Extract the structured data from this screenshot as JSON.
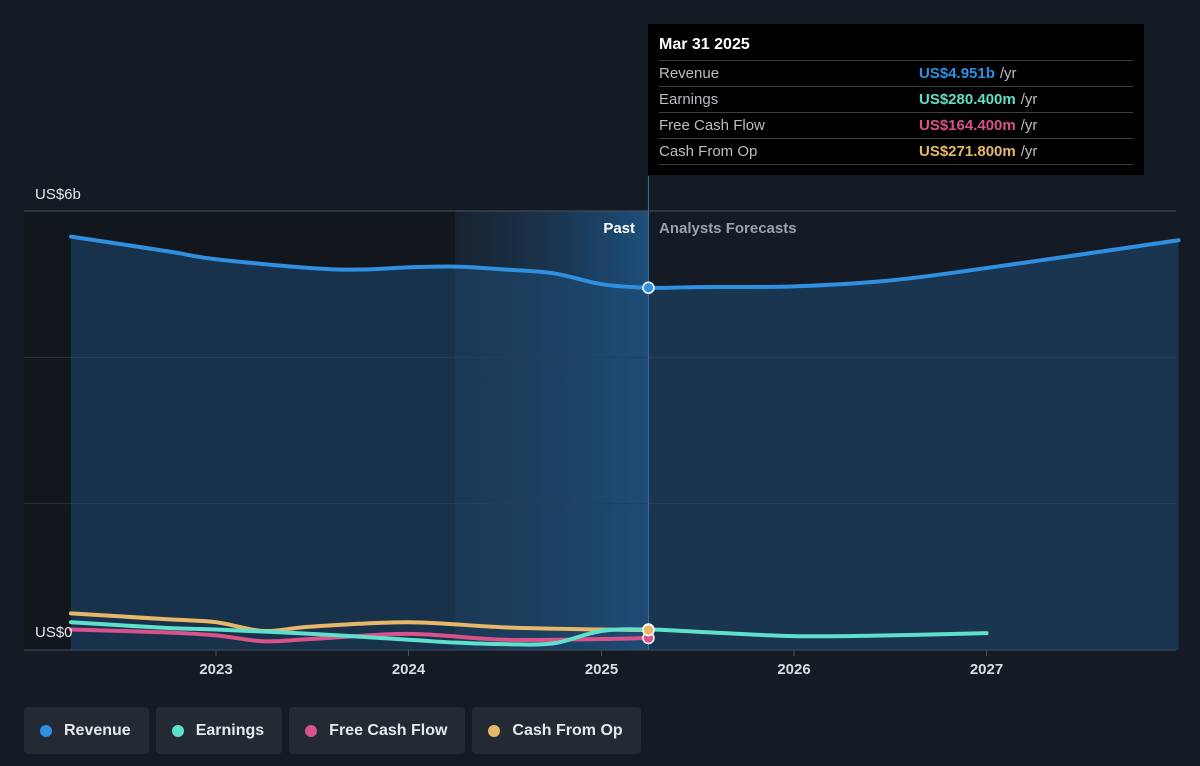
{
  "chart_data": {
    "type": "line",
    "x_axis": {
      "ticks": [
        "2023",
        "2024",
        "2025",
        "2026",
        "2027"
      ]
    },
    "y_axis": {
      "top_label": "US$6b",
      "bottom_label": "US$0",
      "ylim": [
        0,
        6
      ]
    },
    "regions": {
      "past_label": "Past",
      "forecast_label": "Analysts Forecasts"
    },
    "cursor_date": "2025-03-31",
    "series": [
      {
        "name": "Revenue",
        "color": "#2f8fe0",
        "points": [
          [
            "2022-04-01",
            5.65
          ],
          [
            "2022-10-01",
            5.45
          ],
          [
            "2023-01-01",
            5.34
          ],
          [
            "2023-07-01",
            5.22
          ],
          [
            "2023-10-01",
            5.2
          ],
          [
            "2024-01-01",
            5.23
          ],
          [
            "2024-04-01",
            5.24
          ],
          [
            "2024-07-01",
            5.2
          ],
          [
            "2024-10-01",
            5.15
          ],
          [
            "2025-01-01",
            5.0
          ],
          [
            "2025-03-31",
            4.951
          ],
          [
            "2025-07-01",
            4.96
          ],
          [
            "2026-01-01",
            4.97
          ],
          [
            "2026-07-01",
            5.05
          ],
          [
            "2027-01-01",
            5.22
          ],
          [
            "2027-12-31",
            5.6
          ]
        ]
      },
      {
        "name": "Earnings",
        "color": "#5fe0cc",
        "points": [
          [
            "2022-04-01",
            0.38
          ],
          [
            "2022-10-01",
            0.3
          ],
          [
            "2023-01-01",
            0.28
          ],
          [
            "2023-07-01",
            0.22
          ],
          [
            "2024-01-01",
            0.14
          ],
          [
            "2024-04-01",
            0.1
          ],
          [
            "2024-07-01",
            0.08
          ],
          [
            "2024-10-01",
            0.09
          ],
          [
            "2025-01-01",
            0.26
          ],
          [
            "2025-03-31",
            0.2804
          ],
          [
            "2025-07-01",
            0.25
          ],
          [
            "2026-01-01",
            0.19
          ],
          [
            "2026-07-01",
            0.2
          ],
          [
            "2027-01-01",
            0.23
          ]
        ]
      },
      {
        "name": "Free Cash Flow",
        "color": "#d9528a",
        "points": [
          [
            "2022-04-01",
            0.28
          ],
          [
            "2022-10-01",
            0.24
          ],
          [
            "2023-01-01",
            0.2
          ],
          [
            "2023-04-01",
            0.12
          ],
          [
            "2023-07-01",
            0.15
          ],
          [
            "2024-01-01",
            0.22
          ],
          [
            "2024-07-01",
            0.14
          ],
          [
            "2025-01-01",
            0.15
          ],
          [
            "2025-03-31",
            0.1644
          ]
        ]
      },
      {
        "name": "Cash From Op",
        "color": "#e8b86a",
        "points": [
          [
            "2022-04-01",
            0.5
          ],
          [
            "2022-10-01",
            0.42
          ],
          [
            "2023-01-01",
            0.38
          ],
          [
            "2023-04-01",
            0.26
          ],
          [
            "2023-07-01",
            0.32
          ],
          [
            "2024-01-01",
            0.38
          ],
          [
            "2024-07-01",
            0.31
          ],
          [
            "2025-01-01",
            0.28
          ],
          [
            "2025-03-31",
            0.2718
          ]
        ]
      }
    ]
  },
  "tooltip": {
    "date": "Mar 31 2025",
    "rows": [
      {
        "name": "Revenue",
        "value": "US$4.951b",
        "unit": "/yr",
        "color": "#2f8fe0"
      },
      {
        "name": "Earnings",
        "value": "US$280.400m",
        "unit": "/yr",
        "color": "#5fe0cc"
      },
      {
        "name": "Free Cash Flow",
        "value": "US$164.400m",
        "unit": "/yr",
        "color": "#d9528a"
      },
      {
        "name": "Cash From Op",
        "value": "US$271.800m",
        "unit": "/yr",
        "color": "#e8b86a"
      }
    ]
  },
  "legend": [
    {
      "label": "Revenue",
      "color": "#2f8fe0"
    },
    {
      "label": "Earnings",
      "color": "#5fe0cc"
    },
    {
      "label": "Free Cash Flow",
      "color": "#d9528a"
    },
    {
      "label": "Cash From Op",
      "color": "#e8b86a"
    }
  ]
}
